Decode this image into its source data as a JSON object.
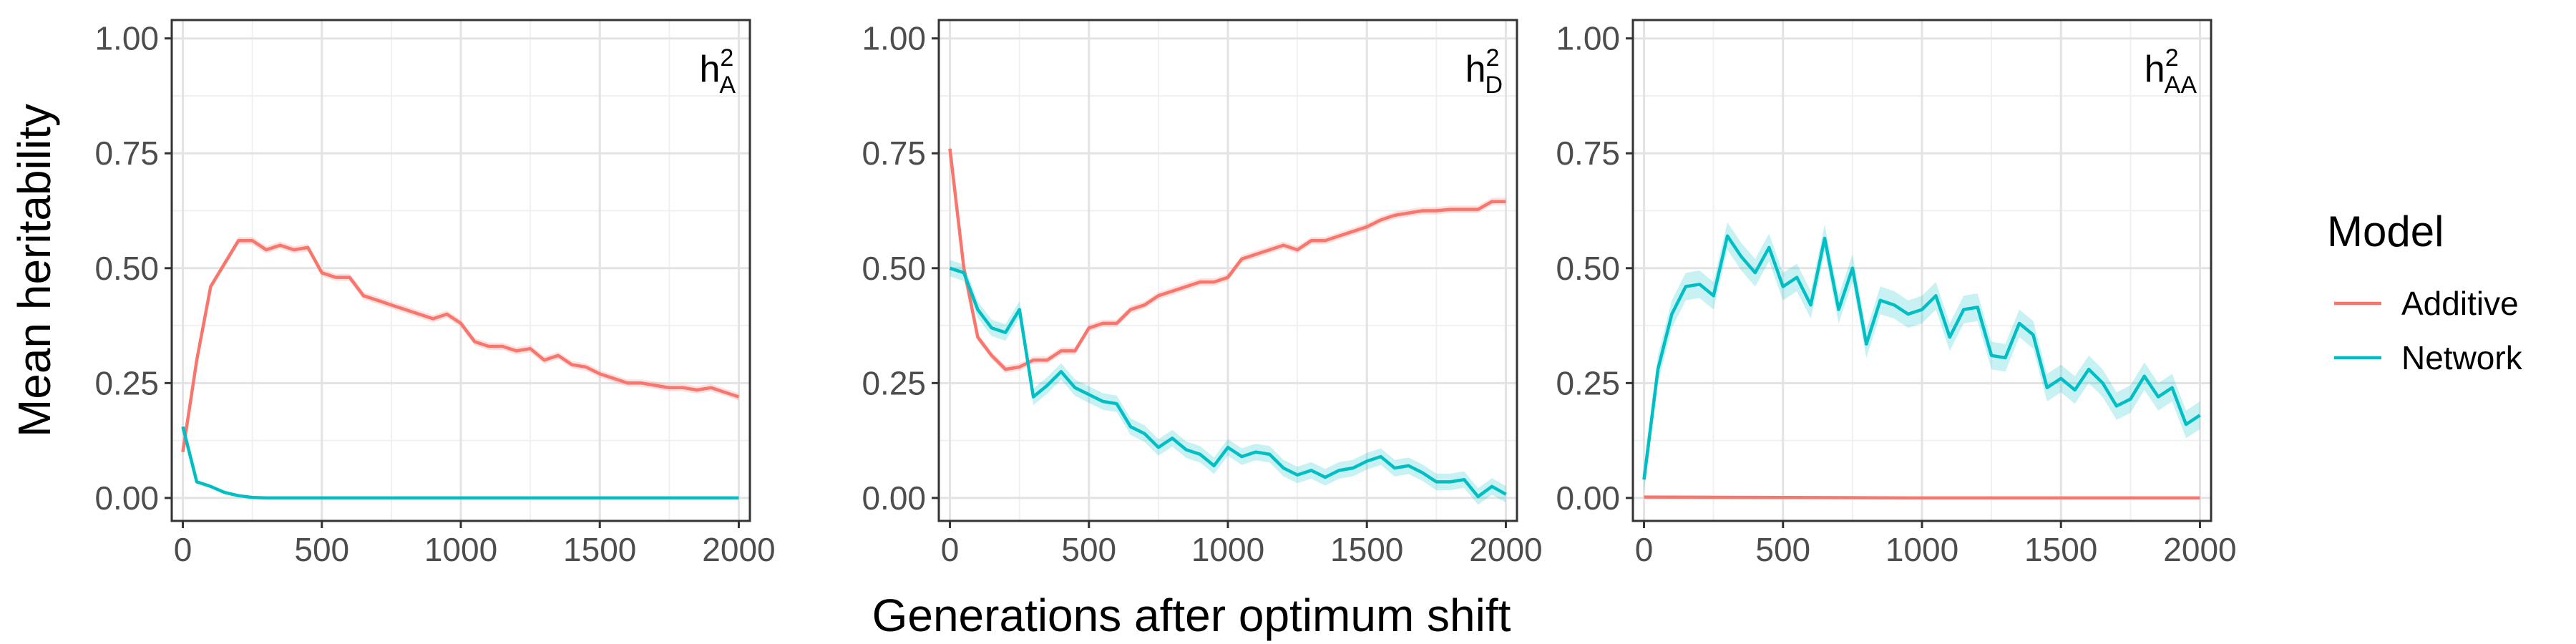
{
  "chart_data": {
    "type": "line",
    "xlabel": "Generations after optimum shift",
    "ylabel": "Mean heritability",
    "xlim": [
      -40,
      2040
    ],
    "ylim": [
      -0.05,
      1.04
    ],
    "x_ticks": [
      0,
      500,
      1000,
      1500,
      2000
    ],
    "x_tick_labels": [
      "0",
      "500",
      "1000",
      "1500",
      "2000"
    ],
    "y_ticks": [
      0,
      0.25,
      0.5,
      0.75,
      1
    ],
    "y_tick_labels": [
      "0.00",
      "0.25",
      "0.50",
      "0.75",
      "1.00"
    ],
    "grid": true,
    "legend": {
      "title": "Model",
      "placement": "right",
      "entries": [
        {
          "name": "Additive",
          "color": "#F8766D"
        },
        {
          "name": "Network",
          "color": "#00BFC4"
        }
      ]
    },
    "panels": [
      {
        "label_main": "h",
        "label_sup": "2",
        "label_sub": "A",
        "series": [
          {
            "name": "Additive",
            "color": "#F8766D",
            "x": [
              0,
              50,
              100,
              150,
              200,
              250,
              300,
              350,
              400,
              450,
              500,
              550,
              600,
              650,
              700,
              750,
              800,
              850,
              900,
              950,
              1000,
              1050,
              1100,
              1150,
              1200,
              1250,
              1300,
              1350,
              1400,
              1450,
              1500,
              1550,
              1600,
              1650,
              1700,
              1750,
              1800,
              1850,
              1900,
              1950,
              2000
            ],
            "y": [
              0.1,
              0.3,
              0.46,
              0.51,
              0.56,
              0.56,
              0.54,
              0.55,
              0.54,
              0.545,
              0.49,
              0.48,
              0.48,
              0.44,
              0.43,
              0.42,
              0.41,
              0.4,
              0.39,
              0.4,
              0.38,
              0.34,
              0.33,
              0.33,
              0.32,
              0.325,
              0.3,
              0.31,
              0.29,
              0.285,
              0.27,
              0.26,
              0.25,
              0.25,
              0.245,
              0.24,
              0.24,
              0.235,
              0.24,
              0.23,
              0.22
            ],
            "band": 0.008
          },
          {
            "name": "Network",
            "color": "#00BFC4",
            "x": [
              0,
              50,
              100,
              150,
              200,
              250,
              300,
              400,
              500,
              1000,
              1500,
              2000
            ],
            "y": [
              0.155,
              0.035,
              0.025,
              0.012,
              0.005,
              0.001,
              0.0,
              0.0,
              0.0,
              0.0,
              0.0,
              0.0
            ],
            "band": 0.003
          }
        ]
      },
      {
        "label_main": "h",
        "label_sup": "2",
        "label_sub": "D",
        "series": [
          {
            "name": "Additive",
            "color": "#F8766D",
            "x": [
              0,
              50,
              100,
              150,
              200,
              250,
              300,
              350,
              400,
              450,
              500,
              550,
              600,
              650,
              700,
              750,
              800,
              850,
              900,
              950,
              1000,
              1050,
              1100,
              1150,
              1200,
              1250,
              1300,
              1350,
              1400,
              1450,
              1500,
              1550,
              1600,
              1650,
              1700,
              1750,
              1800,
              1850,
              1900,
              1950,
              2000
            ],
            "y": [
              0.76,
              0.5,
              0.35,
              0.31,
              0.28,
              0.285,
              0.3,
              0.3,
              0.32,
              0.32,
              0.37,
              0.38,
              0.38,
              0.41,
              0.42,
              0.44,
              0.45,
              0.46,
              0.47,
              0.47,
              0.48,
              0.52,
              0.53,
              0.54,
              0.55,
              0.54,
              0.56,
              0.56,
              0.57,
              0.58,
              0.59,
              0.605,
              0.615,
              0.62,
              0.625,
              0.625,
              0.628,
              0.628,
              0.628,
              0.645,
              0.645
            ],
            "band": 0.008
          },
          {
            "name": "Network",
            "color": "#00BFC4",
            "x": [
              0,
              50,
              100,
              150,
              200,
              250,
              300,
              350,
              400,
              450,
              500,
              550,
              600,
              650,
              700,
              750,
              800,
              850,
              900,
              950,
              1000,
              1050,
              1100,
              1150,
              1200,
              1250,
              1300,
              1350,
              1400,
              1450,
              1500,
              1550,
              1600,
              1650,
              1700,
              1750,
              1800,
              1850,
              1900,
              1950,
              2000
            ],
            "y": [
              0.5,
              0.49,
              0.41,
              0.37,
              0.36,
              0.41,
              0.22,
              0.245,
              0.275,
              0.24,
              0.225,
              0.21,
              0.205,
              0.155,
              0.14,
              0.11,
              0.13,
              0.105,
              0.095,
              0.07,
              0.11,
              0.09,
              0.1,
              0.095,
              0.065,
              0.05,
              0.06,
              0.045,
              0.06,
              0.065,
              0.08,
              0.09,
              0.065,
              0.07,
              0.055,
              0.035,
              0.035,
              0.04,
              0.003,
              0.025,
              0.008
            ],
            "band": 0.018
          }
        ]
      },
      {
        "label_main": "h",
        "label_sup": "2",
        "label_sub": "AA",
        "series": [
          {
            "name": "Additive",
            "color": "#F8766D",
            "x": [
              0,
              500,
              1000,
              1500,
              2000
            ],
            "y": [
              0.002,
              0.001,
              0.0,
              0.0,
              0.0
            ],
            "band": 0.002
          },
          {
            "name": "Network",
            "color": "#00BFC4",
            "x": [
              0,
              50,
              100,
              150,
              200,
              250,
              300,
              350,
              400,
              450,
              500,
              550,
              600,
              650,
              700,
              750,
              800,
              850,
              900,
              950,
              1000,
              1050,
              1100,
              1150,
              1200,
              1250,
              1300,
              1350,
              1400,
              1450,
              1500,
              1550,
              1600,
              1650,
              1700,
              1750,
              1800,
              1850,
              1900,
              1950,
              2000
            ],
            "y": [
              0.04,
              0.28,
              0.4,
              0.46,
              0.465,
              0.44,
              0.57,
              0.525,
              0.49,
              0.545,
              0.46,
              0.48,
              0.42,
              0.565,
              0.41,
              0.5,
              0.335,
              0.43,
              0.42,
              0.4,
              0.41,
              0.44,
              0.35,
              0.41,
              0.415,
              0.31,
              0.305,
              0.38,
              0.355,
              0.24,
              0.26,
              0.235,
              0.28,
              0.25,
              0.2,
              0.215,
              0.265,
              0.22,
              0.24,
              0.16,
              0.18
            ],
            "band": 0.03
          }
        ]
      }
    ]
  }
}
